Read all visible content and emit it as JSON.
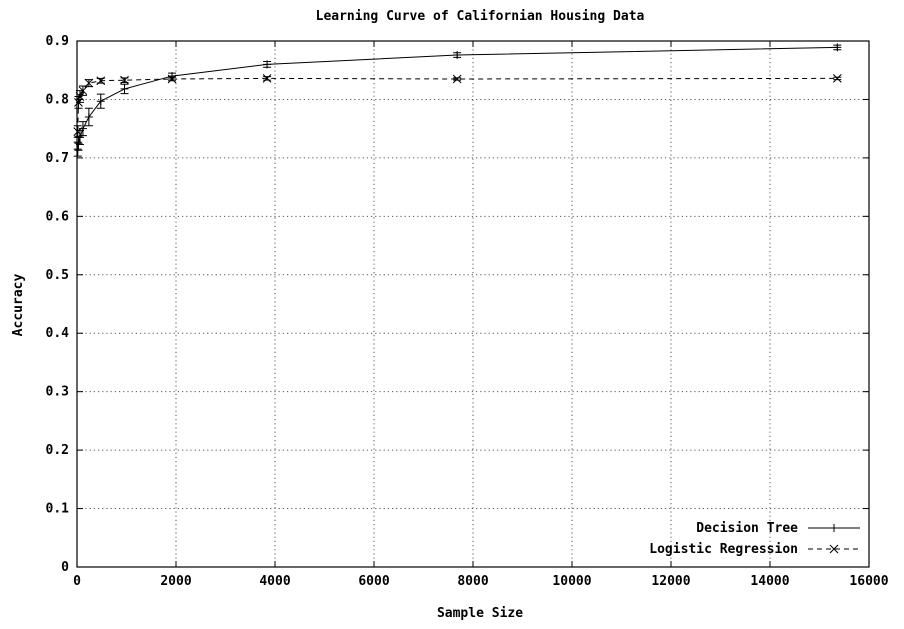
{
  "chart_data": {
    "type": "line",
    "title": "Learning Curve of Californian Housing Data",
    "xlabel": "Sample Size",
    "ylabel": "Accuracy",
    "xlim": [
      0,
      16000
    ],
    "ylim": [
      0,
      0.9
    ],
    "xticks": [
      0,
      2000,
      4000,
      6000,
      8000,
      10000,
      12000,
      14000,
      16000
    ],
    "yticks": [
      0,
      0.1,
      0.2,
      0.3,
      0.4,
      0.5,
      0.6,
      0.7,
      0.8,
      0.9
    ],
    "xtick_labels": [
      "0",
      "2000",
      "4000",
      "6000",
      "8000",
      "10000",
      "12000",
      "14000",
      "16000"
    ],
    "ytick_labels": [
      "0",
      "0.1",
      "0.2",
      "0.3",
      "0.4",
      "0.5",
      "0.6",
      "0.7",
      "0.8",
      "0.9"
    ],
    "grid": true,
    "legend_position": "bottom-right",
    "series": [
      {
        "name": "Decision Tree",
        "marker": "plus",
        "line_style": "solid",
        "points": [
          {
            "x": 15,
            "y": 0.715,
            "err": 0.012
          },
          {
            "x": 30,
            "y": 0.725,
            "err": 0.012
          },
          {
            "x": 60,
            "y": 0.735,
            "err": 0.012
          },
          {
            "x": 120,
            "y": 0.75,
            "err": 0.012
          },
          {
            "x": 240,
            "y": 0.77,
            "err": 0.015
          },
          {
            "x": 480,
            "y": 0.797,
            "err": 0.012
          },
          {
            "x": 960,
            "y": 0.818,
            "err": 0.008
          },
          {
            "x": 1920,
            "y": 0.84,
            "err": 0.005
          },
          {
            "x": 3840,
            "y": 0.86,
            "err": 0.005
          },
          {
            "x": 7680,
            "y": 0.876,
            "err": 0.004
          },
          {
            "x": 15360,
            "y": 0.889,
            "err": 0.004
          }
        ]
      },
      {
        "name": "Logistic Regression",
        "marker": "cross",
        "line_style": "dashed",
        "points": [
          {
            "x": 15,
            "y": 0.745,
            "err": 0.01
          },
          {
            "x": 30,
            "y": 0.795,
            "err": 0.01
          },
          {
            "x": 60,
            "y": 0.805,
            "err": 0.01
          },
          {
            "x": 120,
            "y": 0.815,
            "err": 0.008
          },
          {
            "x": 240,
            "y": 0.828,
            "err": 0.006
          },
          {
            "x": 480,
            "y": 0.832,
            "err": 0.004
          },
          {
            "x": 960,
            "y": 0.833,
            "err": 0.004
          },
          {
            "x": 1920,
            "y": 0.835,
            "err": 0.003
          },
          {
            "x": 3840,
            "y": 0.836,
            "err": 0.003
          },
          {
            "x": 7680,
            "y": 0.835,
            "err": 0.002
          },
          {
            "x": 15360,
            "y": 0.836,
            "err": 0.002
          }
        ]
      }
    ]
  }
}
